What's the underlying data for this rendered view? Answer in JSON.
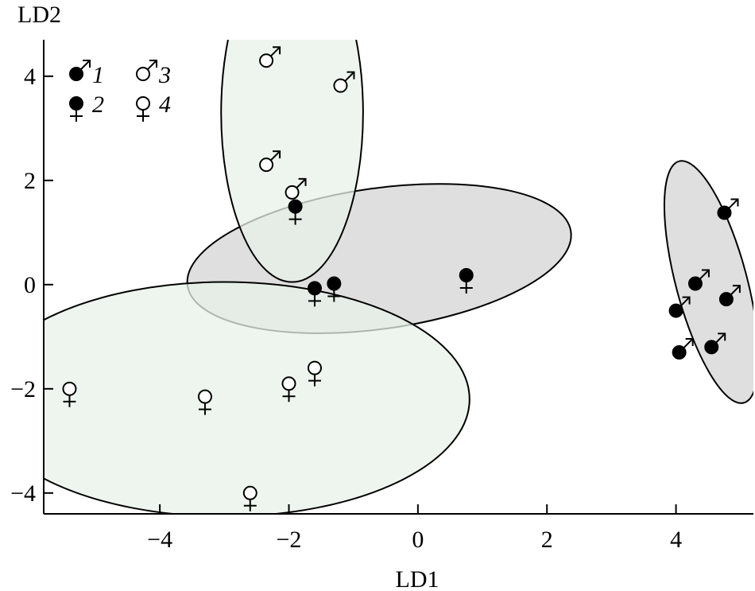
{
  "chart_data": {
    "type": "scatter",
    "title": "",
    "xlabel": "LD1",
    "ylabel": "LD2",
    "xlim": [
      -5.8,
      5.2
    ],
    "ylim": [
      -4.4,
      4.7
    ],
    "x_ticks": [
      -4,
      -2,
      0,
      2,
      4
    ],
    "y_ticks": [
      -4,
      -2,
      0,
      2,
      4
    ],
    "x_tick_labels": [
      "−4",
      "−2",
      "0",
      "2",
      "4"
    ],
    "y_tick_labels": [
      "−4",
      "−2",
      "0",
      "2",
      "4"
    ],
    "grid": false,
    "legend_position": "top-left",
    "colors": {
      "filled": "#000000",
      "hollow": "#ffffff",
      "ellipse_green": "#e8f1e8",
      "ellipse_gray": "#d9d9d9",
      "stroke": "#000000"
    },
    "series": [
      {
        "name": "1",
        "symbol": "male",
        "fill": "filled",
        "points": [
          [
            4.75,
            1.38
          ],
          [
            4.3,
            0.02
          ],
          [
            4.0,
            -0.5
          ],
          [
            4.78,
            -0.28
          ],
          [
            4.05,
            -1.3
          ],
          [
            4.55,
            -1.2
          ]
        ]
      },
      {
        "name": "2",
        "symbol": "female",
        "fill": "filled",
        "points": [
          [
            -1.9,
            1.5
          ],
          [
            -1.6,
            -0.07
          ],
          [
            -1.3,
            0.02
          ],
          [
            0.75,
            0.18
          ]
        ]
      },
      {
        "name": "3",
        "symbol": "male",
        "fill": "hollow",
        "points": [
          [
            -2.35,
            4.3
          ],
          [
            -1.2,
            3.82
          ],
          [
            -2.35,
            2.3
          ],
          [
            -1.95,
            1.77
          ]
        ]
      },
      {
        "name": "4",
        "symbol": "female",
        "fill": "hollow",
        "points": [
          [
            -5.4,
            -2.0
          ],
          [
            -3.3,
            -2.15
          ],
          [
            -2.0,
            -1.9
          ],
          [
            -1.6,
            -1.6
          ],
          [
            -2.6,
            -4.0
          ]
        ]
      }
    ],
    "groups": [
      {
        "series": [
          "1"
        ],
        "style": "gray",
        "center": [
          4.55,
          0.05
        ],
        "rx": 0.55,
        "ry": 2.4,
        "rotation_deg": -15
      },
      {
        "series": [
          "2"
        ],
        "style": "gray",
        "center": [
          -0.6,
          0.5
        ],
        "rx": 3.0,
        "ry": 1.35,
        "rotation_deg": -8
      },
      {
        "series": [
          "3"
        ],
        "style": "green",
        "center": [
          -1.95,
          3.3
        ],
        "rx": 1.1,
        "ry": 3.25,
        "rotation_deg": 0
      },
      {
        "series": [
          "4"
        ],
        "style": "green",
        "center": [
          -3.0,
          -2.2
        ],
        "rx": 3.8,
        "ry": 2.25,
        "rotation_deg": 0
      }
    ]
  }
}
